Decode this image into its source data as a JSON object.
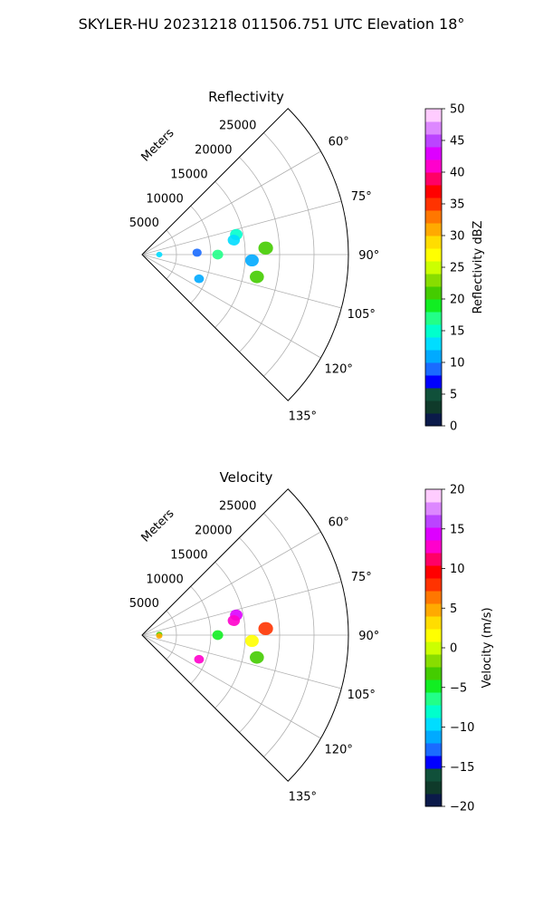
{
  "figure_title": "SKYLER-HU  20231218  011506.751 UTC Elevation 18°",
  "chart_data": [
    {
      "type": "polar-sector",
      "title": "Reflectivity",
      "radial_axis_label": "Meters",
      "radial_ticks": [
        "5000",
        "10000",
        "15000",
        "20000",
        "25000"
      ],
      "radial_max": 30000,
      "angle_ticks": [
        "60°",
        "75°",
        "90°",
        "105°",
        "120°",
        "135°"
      ],
      "angle_range": [
        45,
        135
      ],
      "colorbar": {
        "label": "Reflectivity dBZ",
        "range": [
          0,
          50
        ],
        "ticks": [
          "0",
          "5",
          "10",
          "15",
          "20",
          "25",
          "30",
          "35",
          "40",
          "45",
          "50"
        ],
        "colors": [
          "#0b1a4a",
          "#0f3a2a",
          "#10503a",
          "#0000ff",
          "#1a6bff",
          "#00aaff",
          "#00ddff",
          "#00ffcc",
          "#22ff88",
          "#11ee22",
          "#44cc00",
          "#88dd00",
          "#ccff00",
          "#ffff00",
          "#ffdd00",
          "#ffaa00",
          "#ff7700",
          "#ff3300",
          "#ff0000",
          "#ff0066",
          "#ff00cc",
          "#dd00ff",
          "#bb44ff",
          "#dd88ff",
          "#ffccff"
        ]
      },
      "echoes": [
        {
          "range_m": 2500,
          "azimuth": 90,
          "value": 13
        },
        {
          "range_m": 11000,
          "azimuth": 90,
          "value": 17
        },
        {
          "range_m": 8000,
          "azimuth": 88,
          "value": 8
        },
        {
          "range_m": 14000,
          "azimuth": 78,
          "value": 14
        },
        {
          "range_m": 13500,
          "azimuth": 81,
          "value": 12
        },
        {
          "range_m": 18000,
          "azimuth": 87,
          "value": 20
        },
        {
          "range_m": 16000,
          "azimuth": 93,
          "value": 11
        },
        {
          "range_m": 17000,
          "azimuth": 101,
          "value": 20
        },
        {
          "range_m": 9000,
          "azimuth": 113,
          "value": 10
        }
      ]
    },
    {
      "type": "polar-sector",
      "title": "Velocity",
      "radial_axis_label": "Meters",
      "radial_ticks": [
        "5000",
        "10000",
        "15000",
        "20000",
        "25000"
      ],
      "radial_max": 30000,
      "angle_ticks": [
        "60°",
        "75°",
        "90°",
        "105°",
        "120°",
        "135°"
      ],
      "angle_range": [
        45,
        135
      ],
      "colorbar": {
        "label": "Velocity (m/s)",
        "range": [
          -20,
          20
        ],
        "ticks": [
          "−20",
          "−15",
          "−10",
          "−5",
          "0",
          "5",
          "10",
          "15",
          "20"
        ],
        "colors": [
          "#0b1a4a",
          "#0f3a2a",
          "#10503a",
          "#0000ff",
          "#1a6bff",
          "#00aaff",
          "#00ddff",
          "#00ffcc",
          "#22ff88",
          "#11ee22",
          "#44cc00",
          "#88dd00",
          "#ccff00",
          "#ffff00",
          "#ffdd00",
          "#ffaa00",
          "#ff7700",
          "#ff3300",
          "#ff0000",
          "#ff0066",
          "#ff00cc",
          "#dd00ff",
          "#bb44ff",
          "#dd88ff",
          "#ffccff"
        ]
      },
      "echoes": [
        {
          "range_m": 2500,
          "azimuth": 88,
          "value": -3
        },
        {
          "range_m": 2500,
          "azimuth": 93,
          "value": 4
        },
        {
          "range_m": 11000,
          "azimuth": 90,
          "value": -5
        },
        {
          "range_m": 14000,
          "azimuth": 78,
          "value": 14
        },
        {
          "range_m": 13500,
          "azimuth": 81,
          "value": 12
        },
        {
          "range_m": 18000,
          "azimuth": 87,
          "value": 8
        },
        {
          "range_m": 16000,
          "azimuth": 93,
          "value": 1
        },
        {
          "range_m": 17000,
          "azimuth": 101,
          "value": -4
        },
        {
          "range_m": 9000,
          "azimuth": 113,
          "value": 12
        }
      ]
    }
  ]
}
